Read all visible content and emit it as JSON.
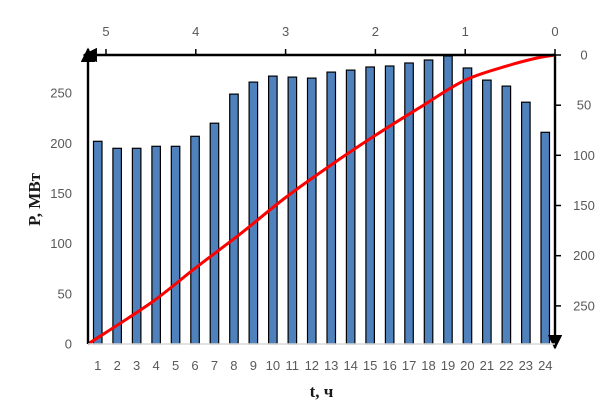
{
  "chart_data": {
    "type": "bar",
    "xlabel": "t, ч",
    "ylabel": "P, МВт",
    "ylim": [
      0,
      288
    ],
    "categories": [
      "1",
      "2",
      "3",
      "4",
      "5",
      "6",
      "7",
      "8",
      "9",
      "10",
      "11",
      "12",
      "13",
      "14",
      "15",
      "16",
      "17",
      "18",
      "19",
      "20",
      "21",
      "22",
      "23",
      "24"
    ],
    "values": [
      202,
      195,
      195,
      197,
      197,
      207,
      220,
      249,
      261,
      267,
      266,
      265,
      271,
      273,
      276,
      277,
      280,
      283,
      287,
      275,
      263,
      257,
      241,
      211
    ],
    "y_ticks": [
      0,
      50,
      100,
      150,
      200,
      250
    ],
    "bar_color": "#4f81bd",
    "bar_edge_color": "#000000",
    "secondary_axes": {
      "top_ticks": [
        5,
        4,
        3,
        2,
        1,
        0
      ],
      "top_range": [
        0,
        5.2
      ],
      "right_ticks": [
        0,
        50,
        100,
        150,
        200,
        250
      ],
      "right_range": [
        0,
        288
      ],
      "right_reversed": true
    },
    "curve": {
      "color": "#ff0000",
      "points": [
        {
          "top": 5.2,
          "right": 288
        },
        {
          "top": 4.5,
          "right": 247
        },
        {
          "top": 4.0,
          "right": 212
        },
        {
          "top": 3.5,
          "right": 178
        },
        {
          "top": 3.0,
          "right": 142
        },
        {
          "top": 2.5,
          "right": 110
        },
        {
          "top": 2.0,
          "right": 80
        },
        {
          "top": 1.5,
          "right": 52
        },
        {
          "top": 1.0,
          "right": 25
        },
        {
          "top": 0.5,
          "right": 10
        },
        {
          "top": 0.2,
          "right": 3
        },
        {
          "top": 0.0,
          "right": 0
        }
      ]
    }
  }
}
